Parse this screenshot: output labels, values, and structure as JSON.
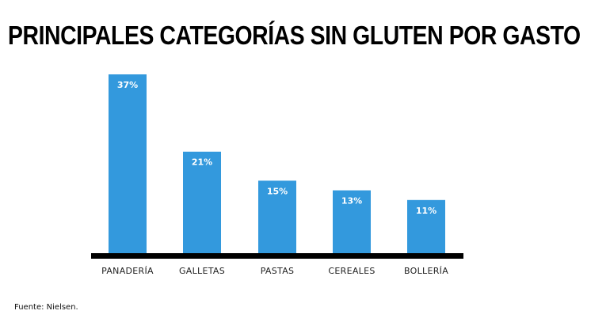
{
  "chart_data": {
    "type": "bar",
    "title": "PRINCIPALES CATEGORÍAS SIN GLUTEN POR GASTO",
    "categories": [
      "PANADERÍA",
      "GALLETAS",
      "PASTAS",
      "CEREALES",
      "BOLLERÍA"
    ],
    "values": [
      37,
      21,
      15,
      13,
      11
    ],
    "value_labels": [
      "37%",
      "21%",
      "15%",
      "13%",
      "11%"
    ],
    "xlabel": "",
    "ylabel": "",
    "ylim": [
      0,
      40
    ],
    "grid": false,
    "legend": "none",
    "bar_color": "#3399dd",
    "axis_color": "#000000"
  },
  "source": "Fuente: Nielsen."
}
